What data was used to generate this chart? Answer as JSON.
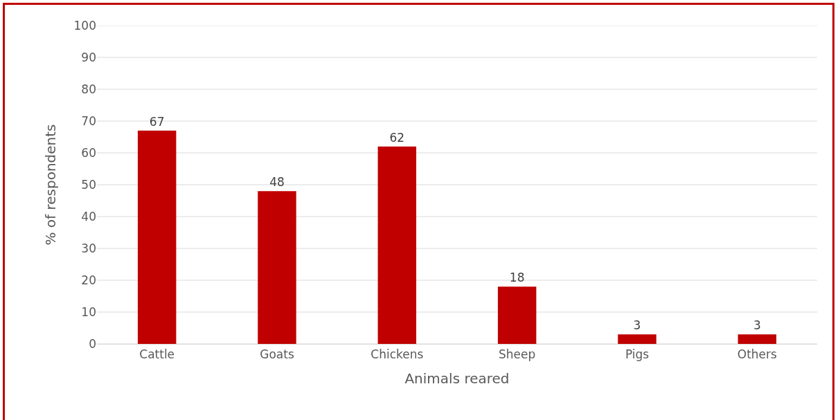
{
  "chart_data": {
    "type": "bar",
    "xlabel": "Animals reared",
    "ylabel": "% of respondents",
    "categories": [
      "Cattle",
      "Goats",
      "Chickens",
      "Sheep",
      "Pigs",
      "Others"
    ],
    "values": [
      67,
      48,
      62,
      18,
      3,
      3
    ],
    "color": "#c00000",
    "ylim": [
      0,
      100
    ],
    "yticks": [
      0,
      10,
      20,
      30,
      40,
      50,
      60,
      70,
      80,
      90,
      100
    ],
    "grid": "y",
    "data_labels": true
  }
}
